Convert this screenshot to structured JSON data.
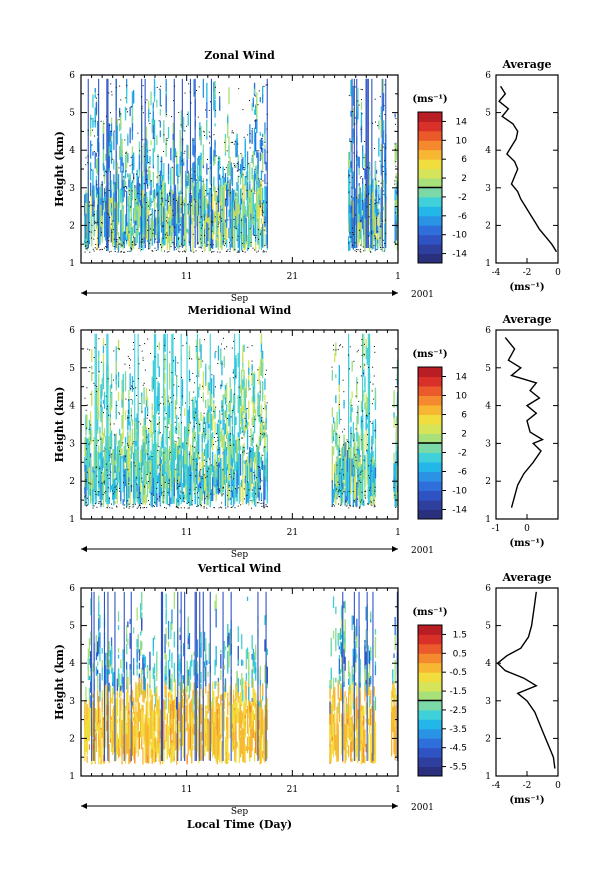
{
  "chart_data": [
    {
      "type": "heatmap",
      "title": "Zonal Wind",
      "ylabel": "Height (km)",
      "xlabel": "",
      "ylim": [
        1,
        6
      ],
      "yticks": [
        "1",
        "2",
        "3",
        "4",
        "5",
        "6"
      ],
      "xlim_day": [
        1,
        31
      ],
      "xticks": [
        "11",
        "21",
        "1"
      ],
      "month_label": "Sep",
      "year_label": "2001",
      "colorbar": {
        "unit": "(ms⁻¹)",
        "labels": [
          "14",
          "10",
          "6",
          "2",
          "-2",
          "-6",
          "-10",
          "-14"
        ],
        "min": -16,
        "max": 16
      },
      "data_gaps_day": [
        [
          18.6,
          26.2
        ],
        [
          29.8,
          30.6
        ]
      ],
      "average": {
        "title": "Average",
        "xlabel": "(ms⁻¹)",
        "xlim": [
          -4,
          0
        ],
        "xticks": [
          "-4",
          "-2",
          "0"
        ],
        "yticks": [
          "1",
          "2",
          "3",
          "4",
          "5",
          "6"
        ],
        "profile": [
          [
            -0.1,
            1.3
          ],
          [
            -0.4,
            1.5
          ],
          [
            -0.8,
            1.7
          ],
          [
            -1.2,
            1.9
          ],
          [
            -1.5,
            2.1
          ],
          [
            -1.8,
            2.3
          ],
          [
            -2.1,
            2.5
          ],
          [
            -2.4,
            2.7
          ],
          [
            -2.6,
            2.9
          ],
          [
            -3.0,
            3.1
          ],
          [
            -2.8,
            3.3
          ],
          [
            -2.6,
            3.5
          ],
          [
            -2.8,
            3.7
          ],
          [
            -3.3,
            3.9
          ],
          [
            -3.0,
            4.1
          ],
          [
            -2.7,
            4.3
          ],
          [
            -2.6,
            4.5
          ],
          [
            -2.9,
            4.7
          ],
          [
            -3.6,
            4.9
          ],
          [
            -3.2,
            5.1
          ],
          [
            -3.8,
            5.3
          ],
          [
            -3.4,
            5.5
          ],
          [
            -3.7,
            5.7
          ]
        ]
      }
    },
    {
      "type": "heatmap",
      "title": "Meridional Wind",
      "ylabel": "Height (km)",
      "xlabel": "",
      "ylim": [
        1,
        6
      ],
      "yticks": [
        "1",
        "2",
        "3",
        "4",
        "5",
        "6"
      ],
      "xlim_day": [
        1,
        31
      ],
      "xticks": [
        "11",
        "21",
        "1"
      ],
      "month_label": "Sep",
      "year_label": "2001",
      "colorbar": {
        "unit": "(ms⁻¹)",
        "labels": [
          "14",
          "10",
          "6",
          "2",
          "-2",
          "-6",
          "-10",
          "-14"
        ],
        "min": -16,
        "max": 16
      },
      "data_gaps_day": [
        [
          18.6,
          24.7
        ],
        [
          28.8,
          30.5
        ]
      ],
      "average": {
        "title": "Average",
        "xlabel": "(ms⁻¹)",
        "xlim": [
          -1,
          1
        ],
        "xticks": [
          "-1",
          "0"
        ],
        "yticks": [
          "1",
          "2",
          "3",
          "4",
          "5",
          "6"
        ],
        "profile": [
          [
            -0.5,
            1.3
          ],
          [
            -0.4,
            1.6
          ],
          [
            -0.3,
            1.9
          ],
          [
            -0.1,
            2.2
          ],
          [
            0.2,
            2.5
          ],
          [
            0.45,
            2.8
          ],
          [
            0.2,
            3.0
          ],
          [
            0.5,
            3.1
          ],
          [
            0.1,
            3.3
          ],
          [
            0.0,
            3.6
          ],
          [
            0.3,
            3.8
          ],
          [
            0.0,
            4.0
          ],
          [
            0.4,
            4.2
          ],
          [
            0.1,
            4.4
          ],
          [
            0.3,
            4.6
          ],
          [
            -0.5,
            4.8
          ],
          [
            -0.2,
            5.0
          ],
          [
            -0.6,
            5.2
          ],
          [
            -0.4,
            5.5
          ],
          [
            -0.7,
            5.8
          ]
        ]
      }
    },
    {
      "type": "heatmap",
      "title": "Vertical Wind",
      "ylabel": "Height (km)",
      "xlabel": "Local Time (Day)",
      "ylim": [
        1,
        6
      ],
      "yticks": [
        "1",
        "2",
        "3",
        "4",
        "5",
        "6"
      ],
      "xlim_day": [
        1,
        31
      ],
      "xticks": [
        "11",
        "21",
        "1"
      ],
      "month_label": "Sep",
      "year_label": "2001",
      "colorbar": {
        "unit": "(ms⁻¹)",
        "labels": [
          "1.5",
          "0.5",
          "-0.5",
          "-1.5",
          "-2.5",
          "-3.5",
          "-4.5",
          "-5.5"
        ],
        "min": -6,
        "max": 2
      },
      "data_gaps_day": [
        [
          18.6,
          24.4
        ],
        [
          28.8,
          30.3
        ]
      ],
      "average": {
        "title": "Average",
        "xlabel": "(ms⁻¹)",
        "xlim": [
          -4,
          0
        ],
        "xticks": [
          "-4",
          "-2",
          "0"
        ],
        "yticks": [
          "1",
          "2",
          "3",
          "4",
          "5",
          "6"
        ],
        "profile": [
          [
            -0.2,
            1.2
          ],
          [
            -0.3,
            1.5
          ],
          [
            -0.6,
            1.8
          ],
          [
            -0.9,
            2.1
          ],
          [
            -1.2,
            2.4
          ],
          [
            -1.5,
            2.7
          ],
          [
            -2.0,
            3.0
          ],
          [
            -2.6,
            3.2
          ],
          [
            -1.4,
            3.4
          ],
          [
            -2.2,
            3.6
          ],
          [
            -3.4,
            3.8
          ],
          [
            -3.9,
            4.0
          ],
          [
            -3.3,
            4.2
          ],
          [
            -2.4,
            4.4
          ],
          [
            -1.9,
            4.7
          ],
          [
            -1.7,
            5.0
          ],
          [
            -1.6,
            5.3
          ],
          [
            -1.5,
            5.6
          ],
          [
            -1.4,
            5.9
          ]
        ]
      }
    }
  ]
}
